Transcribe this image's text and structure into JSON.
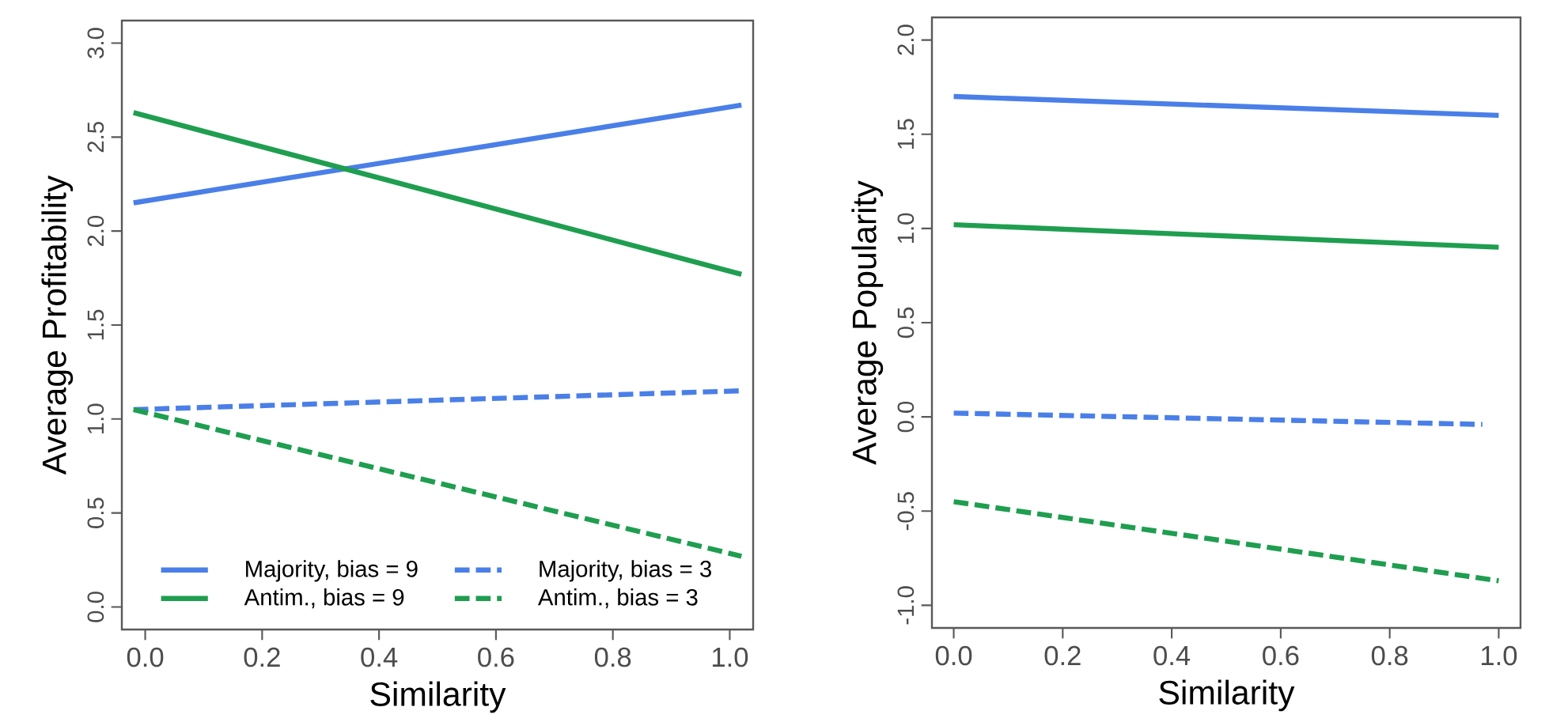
{
  "chart_data": [
    {
      "type": "line",
      "xlabel": "Similarity",
      "ylabel": "Average Profitability",
      "xlim": [
        -0.04,
        1.04
      ],
      "ylim": [
        -0.12,
        3.12
      ],
      "xticks": [
        {
          "value": 0,
          "label": "0.0"
        },
        {
          "value": 0.2,
          "label": "0.2"
        },
        {
          "value": 0.4,
          "label": "0.4"
        },
        {
          "value": 0.6,
          "label": "0.6"
        },
        {
          "value": 0.8,
          "label": "0.8"
        },
        {
          "value": 1,
          "label": "1.0"
        }
      ],
      "yticks": [
        {
          "value": 0,
          "label": "0.0"
        },
        {
          "value": 0.5,
          "label": "0.5"
        },
        {
          "value": 1,
          "label": "1.0"
        },
        {
          "value": 1.5,
          "label": "1.5"
        },
        {
          "value": 2,
          "label": "2.0"
        },
        {
          "value": 2.5,
          "label": "2.5"
        },
        {
          "value": 3,
          "label": "3.0"
        }
      ],
      "legend": "bottom",
      "series": [
        {
          "name": "Majority, bias = 9",
          "color": "#4a7fe8",
          "line_style": "solid",
          "x": [
            -0.02,
            1.02
          ],
          "values": [
            2.15,
            2.67
          ]
        },
        {
          "name": "Majority, bias = 3",
          "color": "#4a7fe8",
          "line_style": "dashed",
          "x": [
            -0.02,
            1.02
          ],
          "values": [
            1.05,
            1.15
          ]
        },
        {
          "name": "Antim., bias = 9",
          "color": "#1f9e50",
          "line_style": "solid",
          "x": [
            -0.02,
            1.02
          ],
          "values": [
            2.63,
            1.77
          ]
        },
        {
          "name": "Antim., bias = 3",
          "color": "#1f9e50",
          "line_style": "dashed",
          "x": [
            -0.02,
            1.02
          ],
          "values": [
            1.05,
            0.27
          ]
        }
      ]
    },
    {
      "type": "line",
      "xlabel": "Similarity",
      "ylabel": "Average Popularity",
      "xlim": [
        -0.04,
        1.04
      ],
      "ylim": [
        -1.12,
        2.12
      ],
      "xticks": [
        {
          "value": 0,
          "label": "0.0"
        },
        {
          "value": 0.2,
          "label": "0.2"
        },
        {
          "value": 0.4,
          "label": "0.4"
        },
        {
          "value": 0.6,
          "label": "0.6"
        },
        {
          "value": 0.8,
          "label": "0.8"
        },
        {
          "value": 1,
          "label": "1.0"
        }
      ],
      "yticks": [
        {
          "value": -1,
          "label": "-1.0"
        },
        {
          "value": -0.5,
          "label": "-0.5"
        },
        {
          "value": 0,
          "label": "0.0"
        },
        {
          "value": 0.5,
          "label": "0.5"
        },
        {
          "value": 1,
          "label": "1.0"
        },
        {
          "value": 1.5,
          "label": "1.5"
        },
        {
          "value": 2,
          "label": "2.0"
        }
      ],
      "series": [
        {
          "color": "#4a7fe8",
          "line_style": "solid",
          "x": [
            0,
            1
          ],
          "values": [
            1.7,
            1.6
          ]
        },
        {
          "color": "#1f9e50",
          "line_style": "solid",
          "x": [
            0,
            1
          ],
          "values": [
            1.02,
            0.9
          ]
        },
        {
          "color": "#4a7fe8",
          "line_style": "dashed",
          "x": [
            0,
            0.97
          ],
          "values": [
            0.02,
            -0.04
          ]
        },
        {
          "color": "#1f9e50",
          "line_style": "dashed",
          "x": [
            0,
            1
          ],
          "values": [
            -0.45,
            -0.87
          ]
        }
      ]
    }
  ]
}
